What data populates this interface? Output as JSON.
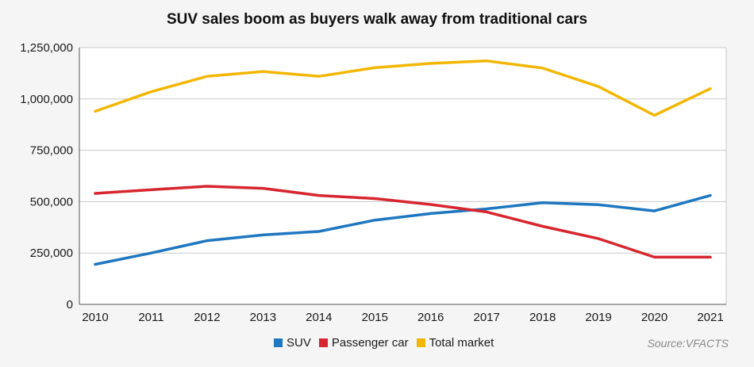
{
  "chart_data": {
    "type": "line",
    "title": "SUV sales boom as buyers walk away from traditional cars",
    "xlabel": "",
    "ylabel": "",
    "x": [
      "2010",
      "2011",
      "2012",
      "2013",
      "2014",
      "2015",
      "2016",
      "2017",
      "2018",
      "2019",
      "2020",
      "2021"
    ],
    "ylim": [
      0,
      1250000
    ],
    "yticks": [
      0,
      250000,
      500000,
      750000,
      1000000,
      1250000
    ],
    "ytick_labels": [
      "0",
      "250,000",
      "500,000",
      "750,000",
      "1,000,000",
      "1,250,000"
    ],
    "grid": true,
    "legend_position": "bottom-center",
    "source": "Source:VFACTS",
    "series": [
      {
        "name": "SUV",
        "color": "#1f77c0",
        "values": [
          195000,
          250000,
          310000,
          338000,
          355000,
          410000,
          442000,
          465000,
          495000,
          485000,
          455000,
          530000
        ]
      },
      {
        "name": "Passenger car",
        "color": "#d7262f",
        "values": [
          540000,
          558000,
          575000,
          565000,
          530000,
          515000,
          486000,
          450000,
          380000,
          320000,
          230000,
          230000
        ]
      },
      {
        "name": "Total market",
        "color": "#f2b705",
        "values": [
          940000,
          1035000,
          1110000,
          1133000,
          1110000,
          1152000,
          1173000,
          1185000,
          1150000,
          1060000,
          920000,
          1050000
        ]
      }
    ]
  }
}
